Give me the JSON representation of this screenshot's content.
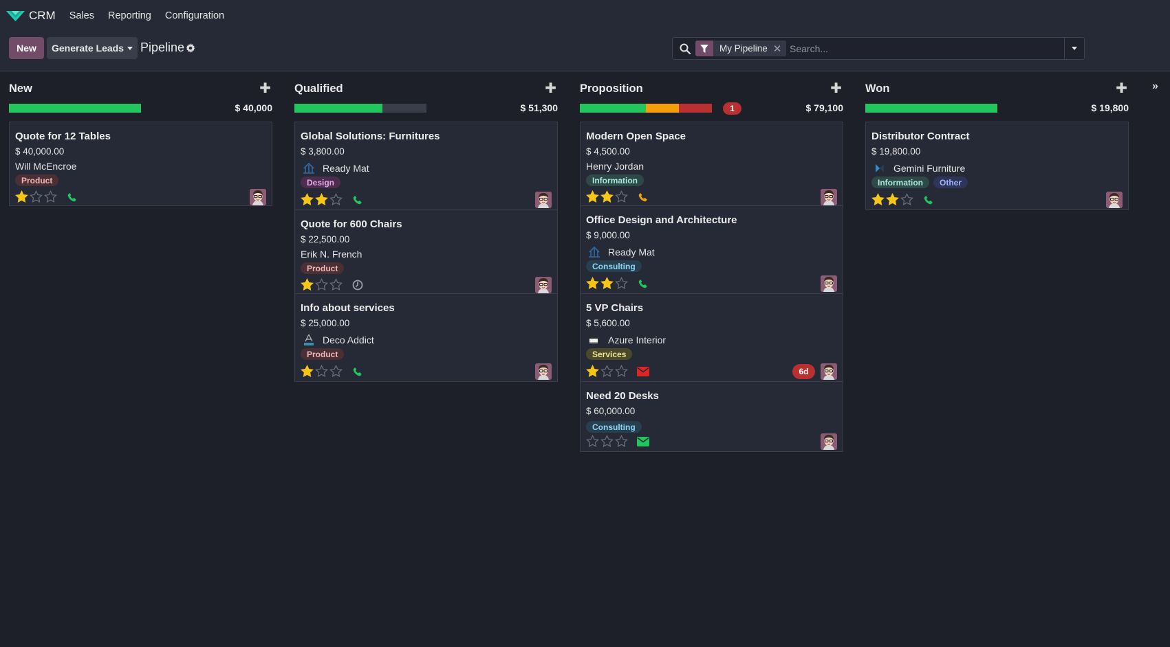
{
  "app": {
    "name": "CRM",
    "menu": [
      "Sales",
      "Reporting",
      "Configuration"
    ]
  },
  "control": {
    "new_label": "New",
    "generate_label": "Generate Leads",
    "breadcrumb": "Pipeline",
    "facet": "My Pipeline",
    "search_placeholder": "Search..."
  },
  "colors": {
    "brand": "#714b67",
    "won": "#22c55e",
    "planned": "#f59e0b",
    "overdue": "#b83030",
    "star": "#f5c518"
  },
  "columns": [
    {
      "title": "New",
      "total": "$ 40,000",
      "overdue": "",
      "progress": {
        "won": 1.0,
        "planned": 0,
        "overdue": 0,
        "none": 0
      },
      "cards": [
        {
          "title": "Quote for 12 Tables",
          "amount": "$ 40,000.00",
          "partner": "Will McEncroe",
          "partner_icon": "",
          "tags": [
            {
              "label": "Product",
              "kind": "product"
            }
          ],
          "stars": 1,
          "activity": "phone-icon",
          "activity_color": "#22c55e",
          "late": ""
        }
      ]
    },
    {
      "title": "Qualified",
      "total": "$ 51,300",
      "overdue": "",
      "progress": {
        "won": 0.667,
        "planned": 0,
        "overdue": 0,
        "none": 0.333
      },
      "cards": [
        {
          "title": "Global Solutions: Furnitures",
          "amount": "$ 3,800.00",
          "partner": "Ready Mat",
          "partner_icon": "ready-mat-logo",
          "tags": [
            {
              "label": "Design",
              "kind": "design"
            }
          ],
          "stars": 2,
          "activity": "phone-icon",
          "activity_color": "#22c55e",
          "late": ""
        },
        {
          "title": "Quote for 600 Chairs",
          "amount": "$ 22,500.00",
          "partner": "Erik N. French",
          "partner_icon": "",
          "tags": [
            {
              "label": "Product",
              "kind": "product"
            }
          ],
          "stars": 1,
          "activity": "clock-icon",
          "activity_color": "#9aa0ab",
          "late": ""
        },
        {
          "title": "Info about services",
          "amount": "$ 25,000.00",
          "partner": "Deco Addict",
          "partner_icon": "deco-addict-logo",
          "tags": [
            {
              "label": "Product",
              "kind": "product"
            }
          ],
          "stars": 1,
          "activity": "phone-icon",
          "activity_color": "#22c55e",
          "late": ""
        }
      ]
    },
    {
      "title": "Proposition",
      "total": "$ 79,100",
      "overdue": "1",
      "progress": {
        "won": 0.5,
        "planned": 0.25,
        "overdue": 0.25,
        "none": 0
      },
      "cards": [
        {
          "title": "Modern Open Space",
          "amount": "$ 4,500.00",
          "partner": "Henry Jordan",
          "partner_icon": "",
          "tags": [
            {
              "label": "Information",
              "kind": "information"
            }
          ],
          "stars": 2,
          "activity": "phone-icon",
          "activity_color": "#f59e0b",
          "late": ""
        },
        {
          "title": "Office Design and Architecture",
          "amount": "$ 9,000.00",
          "partner": "Ready Mat",
          "partner_icon": "ready-mat-logo",
          "tags": [
            {
              "label": "Consulting",
              "kind": "consulting"
            }
          ],
          "stars": 2,
          "activity": "phone-icon",
          "activity_color": "#22c55e",
          "late": ""
        },
        {
          "title": "5 VP Chairs",
          "amount": "$ 5,600.00",
          "partner": "Azure Interior",
          "partner_icon": "azure-interior-logo",
          "tags": [
            {
              "label": "Services",
              "kind": "services"
            }
          ],
          "stars": 1,
          "activity": "envelope-icon",
          "activity_color": "#dc2626",
          "late": "6d"
        },
        {
          "title": "Need 20 Desks",
          "amount": "$ 60,000.00",
          "partner": "",
          "partner_icon": "",
          "tags": [
            {
              "label": "Consulting",
              "kind": "consulting"
            }
          ],
          "stars": 0,
          "activity": "envelope-icon",
          "activity_color": "#22c55e",
          "late": ""
        }
      ]
    },
    {
      "title": "Won",
      "total": "$ 19,800",
      "overdue": "",
      "progress": {
        "won": 1.0,
        "planned": 0,
        "overdue": 0,
        "none": 0
      },
      "cards": [
        {
          "title": "Distributor Contract",
          "amount": "$ 19,800.00",
          "partner": "Gemini Furniture",
          "partner_icon": "gemini-furniture-logo",
          "tags": [
            {
              "label": "Information",
              "kind": "information"
            },
            {
              "label": "Other",
              "kind": "other"
            }
          ],
          "stars": 2,
          "activity": "phone-icon",
          "activity_color": "#22c55e",
          "late": ""
        }
      ]
    }
  ]
}
